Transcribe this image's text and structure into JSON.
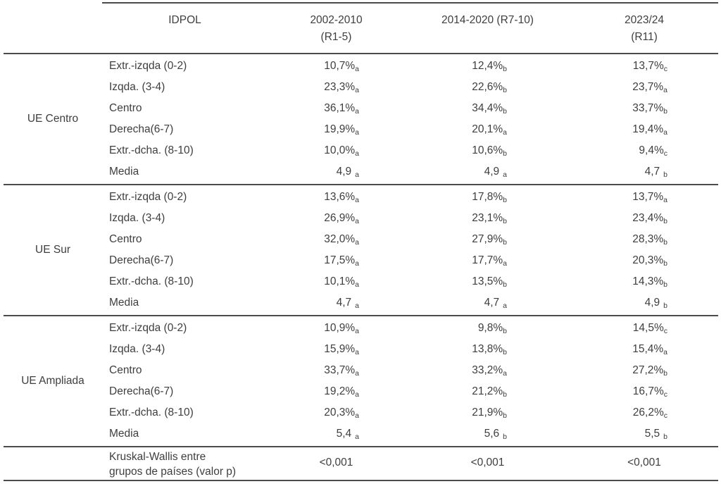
{
  "table": {
    "header": {
      "idpol": "IDPOL",
      "cols": [
        {
          "line1": "2002-2010",
          "line2": "(R1-5)"
        },
        {
          "line1": "2014-2020 (R7-10)",
          "line2": ""
        },
        {
          "line1": "2023/24",
          "line2": "(R11)"
        }
      ]
    },
    "groups": [
      {
        "name": "UE Centro",
        "rows": [
          {
            "label": "Extr.-izqda (0-2)",
            "values": [
              {
                "v": "10,7%",
                "s": "a"
              },
              {
                "v": "12,4%",
                "s": "b"
              },
              {
                "v": "13,7%",
                "s": "c"
              }
            ]
          },
          {
            "label": "Izqda. (3-4)",
            "values": [
              {
                "v": "23,3%",
                "s": "a"
              },
              {
                "v": "22,6%",
                "s": "b"
              },
              {
                "v": "23,7%",
                "s": "a"
              }
            ]
          },
          {
            "label": "Centro",
            "values": [
              {
                "v": "36,1%",
                "s": "a"
              },
              {
                "v": "34,4%",
                "s": "b"
              },
              {
                "v": "33,7%",
                "s": "b"
              }
            ]
          },
          {
            "label": "Derecha(6-7)",
            "values": [
              {
                "v": "19,9%",
                "s": "a"
              },
              {
                "v": "20,1%",
                "s": "a"
              },
              {
                "v": "19,4%",
                "s": "a"
              }
            ]
          },
          {
            "label": "Extr.-dcha. (8-10)",
            "values": [
              {
                "v": "10,0%",
                "s": "a"
              },
              {
                "v": "10,6%",
                "s": "b"
              },
              {
                "v": "9,4%",
                "s": "c"
              }
            ]
          },
          {
            "label": "Media",
            "values": [
              {
                "v": "4,9",
                "s": "a"
              },
              {
                "v": "4,9",
                "s": "a"
              },
              {
                "v": "4,7",
                "s": "b"
              }
            ]
          }
        ]
      },
      {
        "name": "UE Sur",
        "rows": [
          {
            "label": "Extr.-izqda (0-2)",
            "values": [
              {
                "v": "13,6%",
                "s": "a"
              },
              {
                "v": "17,8%",
                "s": "b"
              },
              {
                "v": "13,7%",
                "s": "a"
              }
            ]
          },
          {
            "label": "Izqda. (3-4)",
            "values": [
              {
                "v": "26,9%",
                "s": "a"
              },
              {
                "v": "23,1%",
                "s": "b"
              },
              {
                "v": "23,4%",
                "s": "b"
              }
            ]
          },
          {
            "label": "Centro",
            "values": [
              {
                "v": "32,0%",
                "s": "a"
              },
              {
                "v": "27,9%",
                "s": "b"
              },
              {
                "v": "28,3%",
                "s": "b"
              }
            ]
          },
          {
            "label": "Derecha(6-7)",
            "values": [
              {
                "v": "17,5%",
                "s": "a"
              },
              {
                "v": "17,7%",
                "s": "a"
              },
              {
                "v": "20,3%",
                "s": "b"
              }
            ]
          },
          {
            "label": "Extr.-dcha. (8-10)",
            "values": [
              {
                "v": "10,1%",
                "s": "a"
              },
              {
                "v": "13,5%",
                "s": "b"
              },
              {
                "v": "14,3%",
                "s": "b"
              }
            ]
          },
          {
            "label": "Media",
            "values": [
              {
                "v": "4,7",
                "s": "a"
              },
              {
                "v": "4,7",
                "s": "a"
              },
              {
                "v": "4,9",
                "s": "b"
              }
            ]
          }
        ]
      },
      {
        "name": "UE Ampliada",
        "rows": [
          {
            "label": "Extr.-izqda (0-2)",
            "values": [
              {
                "v": "10,9%",
                "s": "a"
              },
              {
                "v": "9,8%",
                "s": "b"
              },
              {
                "v": "14,5%",
                "s": "c"
              }
            ]
          },
          {
            "label": "Izqda. (3-4)",
            "values": [
              {
                "v": "15,9%",
                "s": "a"
              },
              {
                "v": "13,8%",
                "s": "b"
              },
              {
                "v": "15,4%",
                "s": "a"
              }
            ]
          },
          {
            "label": "Centro",
            "values": [
              {
                "v": "33,7%",
                "s": "a"
              },
              {
                "v": "33,2%",
                "s": "a"
              },
              {
                "v": "27,2%",
                "s": "b"
              }
            ]
          },
          {
            "label": "Derecha(6-7)",
            "values": [
              {
                "v": "19,2%",
                "s": "a"
              },
              {
                "v": "21,2%",
                "s": "b"
              },
              {
                "v": "16,7%",
                "s": "c"
              }
            ]
          },
          {
            "label": "Extr.-dcha. (8-10)",
            "values": [
              {
                "v": "20,3%",
                "s": "a"
              },
              {
                "v": "21,9%",
                "s": "b"
              },
              {
                "v": "26,2%",
                "s": "c"
              }
            ]
          },
          {
            "label": "Media",
            "values": [
              {
                "v": "5,4",
                "s": "a"
              },
              {
                "v": "5,6",
                "s": "b"
              },
              {
                "v": "5,5",
                "s": "b"
              }
            ]
          }
        ]
      }
    ],
    "footer": {
      "label_line1": "Kruskal-Wallis entre",
      "label_line2": "grupos de países (valor p)",
      "values": [
        "<0,001",
        "<0,001",
        "<0,001"
      ]
    }
  },
  "colors": {
    "text": "#3e3e3e",
    "rule": "#4c4c4c",
    "background": "#ffffff"
  }
}
